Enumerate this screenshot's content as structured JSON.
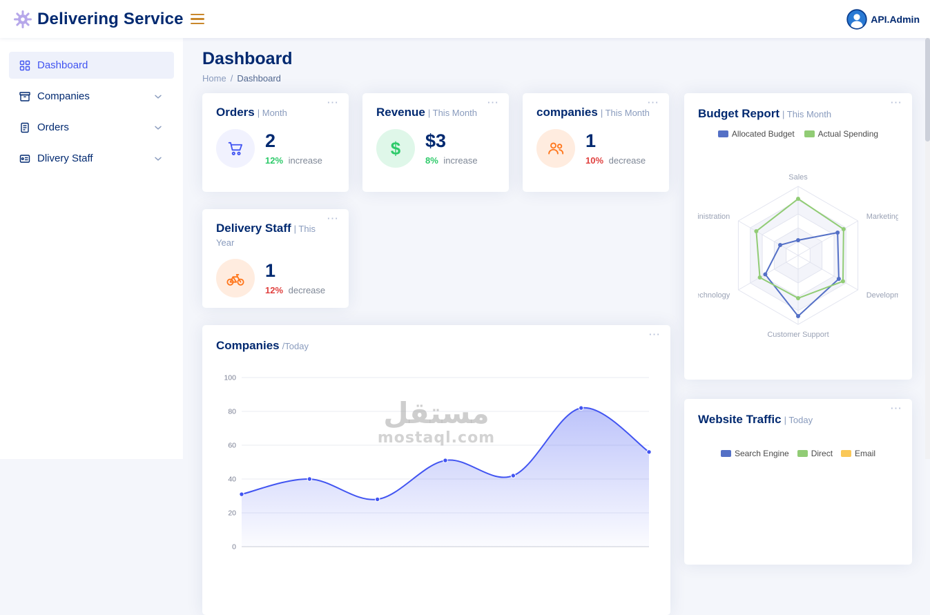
{
  "palette": {
    "primary": "#4154f1",
    "heading": "#012970",
    "muted": "#899bbd",
    "green": "#2eca6a",
    "red": "#e0413f",
    "orange": "#ff771d",
    "bg": "#f4f6fb"
  },
  "header": {
    "brand": "Delivering Service",
    "user": "API.Admin"
  },
  "sidebar": {
    "items": [
      {
        "label": "Dashboard",
        "active": true
      },
      {
        "label": "Companies",
        "active": false
      },
      {
        "label": "Orders",
        "active": false
      },
      {
        "label": "Dlivery Staff",
        "active": false
      }
    ]
  },
  "page": {
    "title": "Dashboard",
    "breadcrumb_home": "Home",
    "breadcrumb_sep": "/",
    "breadcrumb_current": "Dashboard"
  },
  "stats": {
    "orders": {
      "title": "Orders",
      "period": "| Month",
      "value": "2",
      "delta": "12%",
      "direction": "increase"
    },
    "revenue": {
      "title": "Revenue",
      "period": "| This Month",
      "value": "$3",
      "delta": "8%",
      "direction": "increase",
      "icon_char": "$"
    },
    "companies": {
      "title": "companies",
      "period": "| This Month",
      "value": "1",
      "delta": "10%",
      "direction": "decrease"
    },
    "delivery": {
      "title": "Delivery Staff",
      "period": "| This Year",
      "value": "1",
      "delta": "12%",
      "direction": "decrease"
    }
  },
  "budget_card": {
    "title": "Budget Report",
    "period": "| This Month"
  },
  "companies_card": {
    "title": "Companies",
    "period": "/Today"
  },
  "traffic_card": {
    "title": "Website Traffic",
    "period": "| Today",
    "legend": [
      "Search Engine",
      "Direct",
      "Email"
    ],
    "legend_colors": [
      "#5470c6",
      "#91cc75",
      "#fac858"
    ]
  },
  "watermark": {
    "line1": "مستقل",
    "line2": "mostaql.com"
  },
  "ellipsis": "⋯",
  "chart_data": [
    {
      "id": "budget-radar",
      "type": "radar",
      "title": "Budget Report",
      "subtitle": "This Month",
      "axes": [
        "Sales",
        "Administration",
        "Information Technology",
        "Customer Support",
        "Development",
        "Marketing"
      ],
      "axes_layout": "counterclockwise-from-top",
      "max": 100,
      "levels": 5,
      "legend_position": "top",
      "series": [
        {
          "name": "Allocated Budget",
          "color": "#5470c6",
          "values": [
            22,
            30,
            55,
            88,
            68,
            66
          ]
        },
        {
          "name": "Actual Spending",
          "color": "#91cc75",
          "values": [
            82,
            70,
            64,
            62,
            75,
            76
          ]
        }
      ]
    },
    {
      "id": "companies-area",
      "type": "area",
      "title": "Companies /Today",
      "ylim": [
        0,
        100
      ],
      "yticks": [
        100,
        80,
        60,
        40,
        20,
        0
      ],
      "grid": true,
      "series": [
        {
          "name": "Companies",
          "color": "#4154f1",
          "values": [
            31,
            40,
            28,
            51,
            42,
            82,
            56
          ]
        }
      ]
    }
  ]
}
